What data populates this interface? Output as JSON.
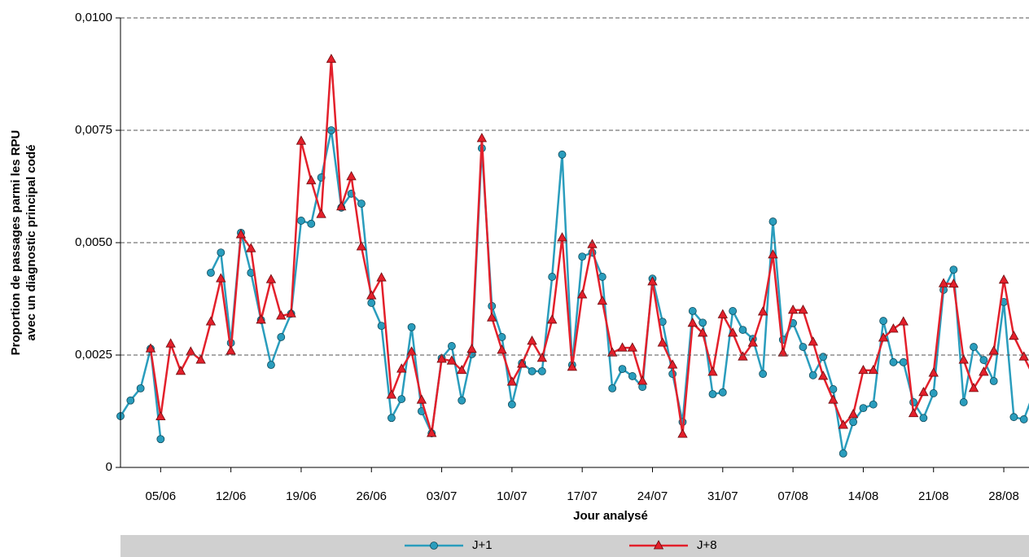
{
  "chart_data": {
    "type": "line",
    "ylabel": [
      "Proportion de passages parmi les RPU",
      "avec un diagnostic principal codé"
    ],
    "xlabel": "Jour analysé",
    "categories": [
      null,
      null,
      null,
      null,
      "05/06",
      null,
      null,
      null,
      null,
      null,
      null,
      "12/06",
      null,
      null,
      null,
      null,
      null,
      null,
      "19/06",
      null,
      null,
      null,
      null,
      null,
      null,
      "26/06",
      null,
      null,
      null,
      null,
      null,
      null,
      "03/07",
      null,
      null,
      null,
      null,
      null,
      null,
      "10/07",
      null,
      null,
      null,
      null,
      null,
      null,
      "17/07",
      null,
      null,
      null,
      null,
      null,
      null,
      "24/07",
      null,
      null,
      null,
      null,
      null,
      null,
      "31/07",
      null,
      null,
      null,
      null,
      null,
      null,
      "07/08",
      null,
      null,
      null,
      null,
      null,
      null,
      "14/08",
      null,
      null,
      null,
      null,
      null,
      null,
      "21/08",
      null,
      null,
      null,
      null,
      null,
      null,
      "28/08",
      null,
      null,
      null
    ],
    "series": [
      {
        "name": "J+1",
        "color": "#2a9dbd",
        "marker": "circle",
        "values": [
          0.00114,
          0.00149,
          0.00176,
          0.00264,
          0.00063,
          null,
          null,
          null,
          null,
          0.00433,
          0.00478,
          0.00277,
          0.00522,
          0.00433,
          0.00328,
          0.00228,
          0.0029,
          0.00342,
          0.00549,
          0.00542,
          0.00645,
          0.0075,
          0.00578,
          0.00609,
          0.00587,
          0.00366,
          0.00315,
          0.0011,
          0.00152,
          0.00312,
          0.00125,
          0.00076,
          0.00243,
          0.0027,
          0.00149,
          0.00252,
          0.0071,
          0.00359,
          0.0029,
          0.0014,
          0.00232,
          0.00214,
          0.00214,
          0.00424,
          0.00696,
          0.00228,
          0.00469,
          0.00478,
          0.00424,
          0.00176,
          0.00219,
          0.00203,
          0.00179,
          0.0042,
          0.00324,
          0.00208,
          0.00101,
          0.00348,
          0.00322,
          0.00163,
          0.00167,
          0.00348,
          0.00306,
          0.00286,
          0.00208,
          0.00547,
          0.00284,
          0.00321,
          0.00268,
          0.00205,
          0.00246,
          0.00174,
          0.00031,
          0.00101,
          0.00132,
          0.0014,
          0.00326,
          0.00234,
          0.00234,
          0.00145,
          0.0011,
          0.00165,
          0.00395,
          0.0044,
          0.00145,
          0.00268,
          0.00239,
          0.00192,
          0.00368,
          0.00112,
          0.00107,
          0.00167
        ]
      },
      {
        "name": "J+8",
        "color": "#e3202b",
        "marker": "triangle",
        "values": [
          null,
          null,
          null,
          0.00264,
          0.00113,
          0.00275,
          0.00214,
          0.00257,
          0.00239,
          0.00324,
          0.0042,
          0.00259,
          0.00518,
          0.00487,
          0.00328,
          0.00418,
          0.00337,
          0.00342,
          0.00726,
          0.00638,
          0.00563,
          0.00908,
          0.0058,
          0.00647,
          0.00491,
          0.00382,
          0.00422,
          0.00161,
          0.00219,
          0.00257,
          0.0015,
          0.00076,
          0.00241,
          0.00237,
          0.00216,
          0.00263,
          0.00732,
          0.00333,
          0.00261,
          0.0019,
          0.0023,
          0.00281,
          0.00243,
          0.00328,
          0.00511,
          0.00223,
          0.00384,
          0.00496,
          0.0037,
          0.00255,
          0.00266,
          0.00266,
          0.00192,
          0.00413,
          0.00277,
          0.00228,
          0.00074,
          0.00321,
          0.00299,
          0.00212,
          0.0034,
          0.00299,
          0.00246,
          0.00277,
          0.00346,
          0.00473,
          0.00255,
          0.0035,
          0.0035,
          0.00279,
          0.00203,
          0.0015,
          0.00094,
          0.00118,
          0.00216,
          0.00216,
          0.00288,
          0.00308,
          0.00324,
          0.0012,
          0.00167,
          0.0021,
          0.00409,
          0.00408,
          0.00239,
          0.00176,
          0.00212,
          0.00259,
          0.00417,
          0.00292,
          0.00246,
          0.00201
        ]
      }
    ],
    "ylim": [
      0,
      0.01
    ],
    "yticks": [
      0,
      {
        "value": 0.0025,
        "label": "0,0025"
      },
      {
        "value": 0.005,
        "label": "0,0050"
      },
      {
        "value": 0.0075,
        "label": "0,0075"
      },
      {
        "value": 0.01,
        "label": "0,0100"
      }
    ],
    "grid": true,
    "legend": "bottom"
  }
}
